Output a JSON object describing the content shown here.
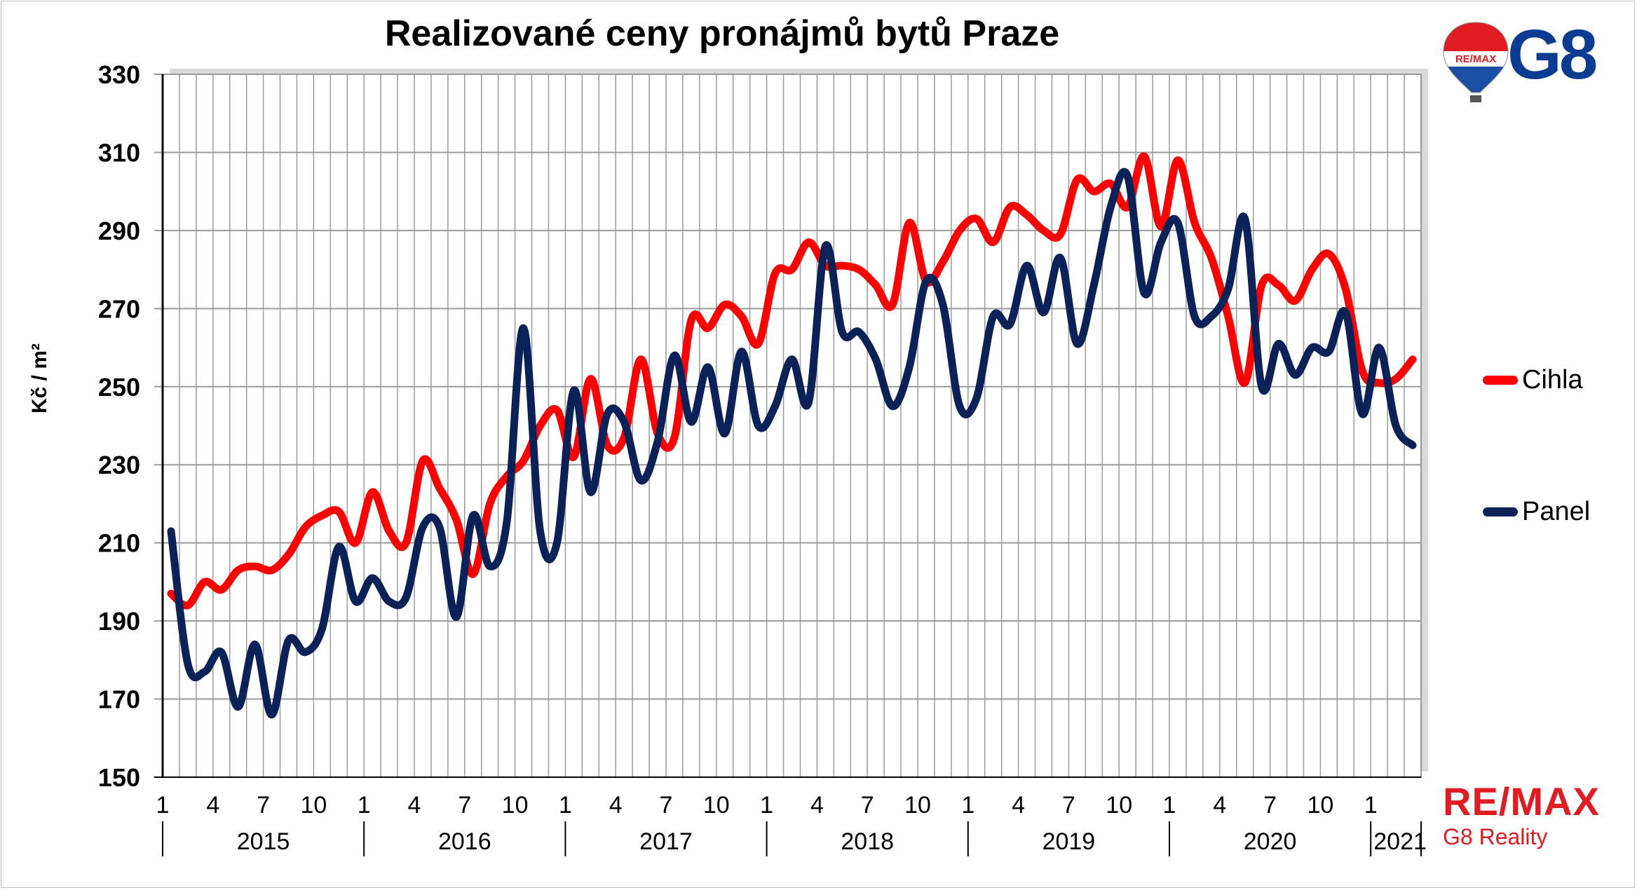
{
  "chart_data": {
    "type": "line",
    "title": "Realizované ceny pronájmů bytů Praze",
    "ylabel": "Kč / m²",
    "ylim": [
      150,
      330
    ],
    "yticks": [
      150,
      170,
      190,
      210,
      230,
      250,
      270,
      290,
      310,
      330
    ],
    "x_month_labels": [
      "1",
      "4",
      "7",
      "10",
      "1",
      "4",
      "7",
      "10",
      "1",
      "4",
      "7",
      "10",
      "1",
      "4",
      "7",
      "10",
      "1",
      "4",
      "7",
      "10",
      "1",
      "4",
      "7",
      "10",
      "1"
    ],
    "x_year_labels": [
      "2015",
      "2016",
      "2017",
      "2018",
      "2019",
      "2020",
      "2021"
    ],
    "grid": true,
    "legend_position": "right",
    "n_points": 75,
    "series": [
      {
        "name": "Cihla",
        "color": "#ff0000",
        "values": [
          197,
          194,
          200,
          198,
          203,
          204,
          203,
          207,
          214,
          217,
          218,
          210,
          223,
          213,
          210,
          231,
          224,
          216,
          202,
          220,
          227,
          231,
          240,
          244,
          232,
          252,
          235,
          237,
          257,
          238,
          237,
          267,
          265,
          271,
          268,
          261,
          279,
          280,
          287,
          281,
          281,
          280,
          276,
          271,
          292,
          277,
          282,
          290,
          293,
          287,
          296,
          294,
          290,
          289,
          303,
          300,
          302,
          296,
          309,
          291,
          308,
          292,
          283,
          268,
          251,
          276,
          276,
          272,
          280,
          284,
          275,
          254,
          251,
          252,
          257
        ]
      },
      {
        "name": "Panel",
        "color": "#0b2259",
        "values": [
          213,
          179,
          177,
          182,
          168,
          184,
          166,
          185,
          182,
          188,
          209,
          195,
          201,
          195,
          196,
          214,
          214,
          191,
          217,
          204,
          215,
          265,
          213,
          210,
          249,
          223,
          243,
          241,
          226,
          236,
          258,
          241,
          255,
          238,
          259,
          240,
          245,
          257,
          246,
          286,
          264,
          264,
          257,
          245,
          255,
          277,
          271,
          245,
          247,
          268,
          266,
          281,
          269,
          283,
          261,
          276,
          296,
          304,
          274,
          287,
          292,
          268,
          268,
          275,
          293,
          250,
          261,
          253,
          260,
          259,
          269,
          243,
          260,
          240,
          235
        ]
      }
    ]
  },
  "branding": {
    "remax_top": "RE/MAX",
    "g8_top": "G8",
    "remax_bottom": "RE/MAX",
    "g8_reality": "G8 Reality",
    "brand_red": "#e11b22",
    "brand_blue": "#0a3d91"
  }
}
